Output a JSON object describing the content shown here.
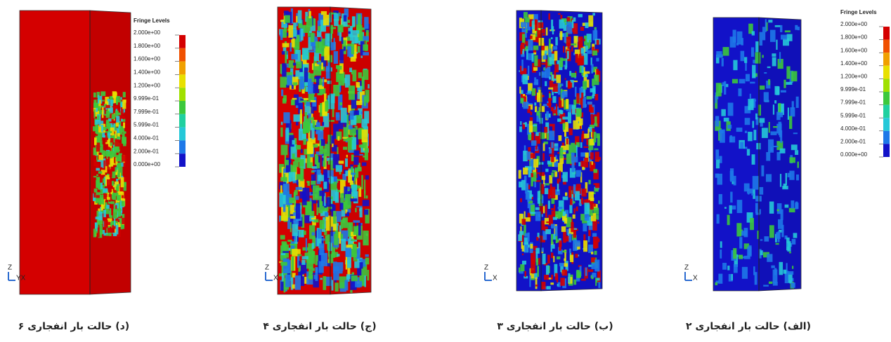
{
  "panels": [
    {
      "caption": "(د) حالت بار انفجاری ۶",
      "triad": {
        "z": "Z",
        "xy": "YX"
      },
      "legend": {
        "title": "Fringe Levels",
        "labels": [
          "2.000e+00",
          "1.800e+00",
          "1.600e+00",
          "1.400e+00",
          "1.200e+00",
          "9.999e-01",
          "7.999e-01",
          "5.999e-01",
          "4.000e-01",
          "2.000e-01",
          "0.000e+00"
        ]
      }
    },
    {
      "caption": "(ج) حالت بار انفجاری ۴",
      "triad": {
        "z": "Z",
        "xy": "X"
      }
    },
    {
      "caption": "(ب) حالت بار انفجاری ۳",
      "triad": {
        "z": "Z",
        "xy": "X"
      }
    },
    {
      "caption": "(الف) حالت بار انفجاری ۲",
      "triad": {
        "z": "Z",
        "xy": "X"
      },
      "legend": {
        "title": "Fringe Levels",
        "labels": [
          "2.000e+00",
          "1.800e+00",
          "1.600e+00",
          "1.400e+00",
          "1.200e+00",
          "9.999e-01",
          "7.999e-01",
          "5.999e-01",
          "4.000e-01",
          "2.000e-01",
          "0.000e+00"
        ]
      }
    }
  ]
}
